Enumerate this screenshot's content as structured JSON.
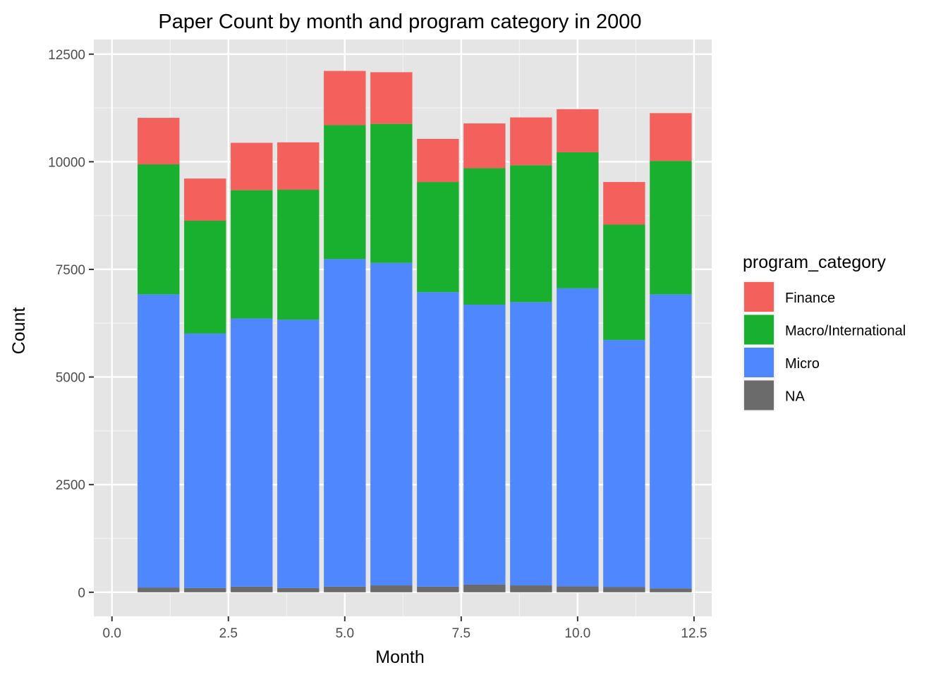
{
  "chart_data": {
    "type": "bar",
    "stacked": true,
    "title": "Paper Count by month and program category in 2000",
    "xlabel": "Month",
    "ylabel": "Count",
    "xlim": [
      0,
      12.5
    ],
    "ylim": [
      -500,
      12700
    ],
    "x_ticks": [
      "0.0",
      "2.5",
      "5.0",
      "7.5",
      "10.0",
      "12.5"
    ],
    "x_tick_values": [
      0,
      2.5,
      5,
      7.5,
      10,
      12.5
    ],
    "y_ticks": [
      "0",
      "2500",
      "5000",
      "7500",
      "10000",
      "12500"
    ],
    "y_tick_values": [
      0,
      2500,
      5000,
      7500,
      10000,
      12500
    ],
    "x": [
      1,
      2,
      3,
      4,
      5,
      6,
      7,
      8,
      9,
      10,
      11,
      12
    ],
    "grid": true,
    "legend_title": "program_category",
    "legend_position": "right",
    "series": [
      {
        "name": "NA",
        "color": "#6b6b6b",
        "values": [
          110,
          100,
          130,
          100,
          130,
          160,
          130,
          180,
          160,
          140,
          120,
          90
        ]
      },
      {
        "name": "Micro",
        "color": "#4f88fe",
        "values": [
          6810,
          5910,
          6230,
          6230,
          7610,
          7490,
          6840,
          6500,
          6580,
          6920,
          5740,
          6830
        ]
      },
      {
        "name": "Macro/International",
        "color": "#19b02f",
        "values": [
          3020,
          2620,
          2980,
          3020,
          3110,
          3230,
          2560,
          3170,
          3180,
          3160,
          2680,
          3100
        ]
      },
      {
        "name": "Finance",
        "color": "#f4615d",
        "values": [
          1080,
          980,
          1100,
          1100,
          1260,
          1200,
          1000,
          1040,
          1110,
          1000,
          990,
          1110
        ]
      }
    ],
    "legend_order": [
      "Finance",
      "Macro/International",
      "Micro",
      "NA"
    ]
  }
}
